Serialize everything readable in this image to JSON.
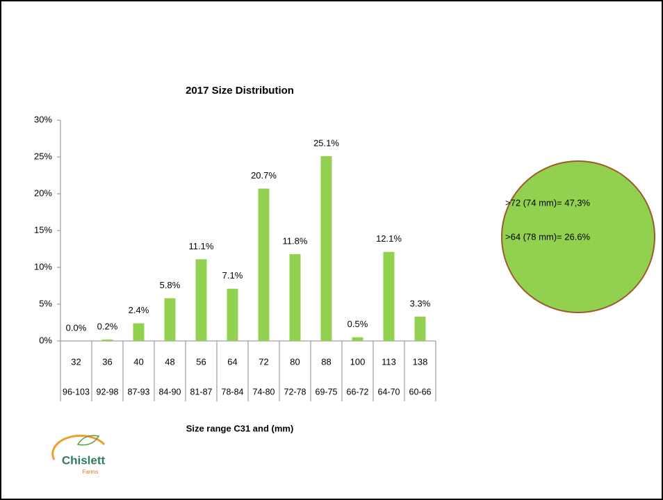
{
  "chart_data": {
    "type": "bar",
    "title": "2017 Size Distribution",
    "x_label": "Size range C31 and (mm)",
    "categories": [
      "32",
      "36",
      "40",
      "48",
      "56",
      "64",
      "72",
      "80",
      "88",
      "100",
      "113",
      "138"
    ],
    "size_ranges": [
      "96-103",
      "92-98",
      "87-93",
      "84-90",
      "81-87",
      "78-84",
      "74-80",
      "72-78",
      "69-75",
      "66-72",
      "64-70",
      "60-66"
    ],
    "values": [
      0.0,
      0.2,
      2.4,
      5.8,
      11.1,
      7.1,
      20.7,
      11.8,
      25.1,
      0.5,
      12.1,
      3.3
    ],
    "value_labels": [
      "0.0%",
      "0.2%",
      "2.4%",
      "5.8%",
      "11.1%",
      "7.1%",
      "20.7%",
      "11.8%",
      "25.1%",
      "0.5%",
      "12.1%",
      "3.3%"
    ],
    "color": "#92d050",
    "ylim": [
      0,
      30
    ],
    "yticks": [
      {
        "value": 0,
        "label": "0%"
      },
      {
        "value": 5,
        "label": "5%"
      },
      {
        "value": 10,
        "label": "10%"
      },
      {
        "value": 15,
        "label": "15%"
      },
      {
        "value": 20,
        "label": "20%"
      },
      {
        "value": 25,
        "label": "25%"
      },
      {
        "value": 30,
        "label": "30%"
      }
    ],
    "grid": false,
    "annotations": [
      ">72 (74 mm)= 47,3%",
      ">64 (78 mm)= 26.6%"
    ]
  },
  "logo": {
    "name": "Chislett",
    "tagline": "Farms"
  }
}
